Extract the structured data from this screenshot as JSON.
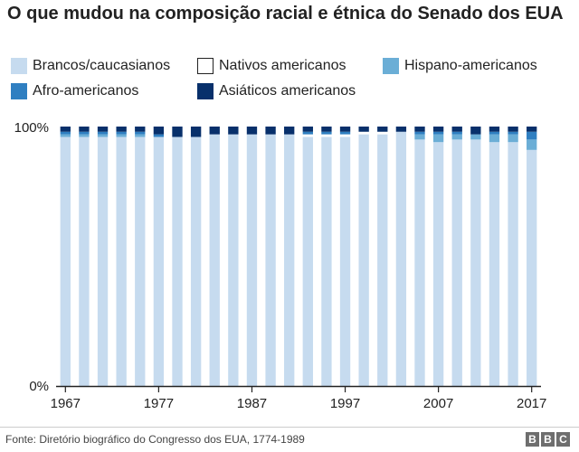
{
  "chart_data": {
    "type": "bar",
    "stacked": true,
    "normalized_percent": true,
    "title": "O que mudou na composição racial e étnica do Senado dos EUA",
    "categories": [
      "1967",
      "1969",
      "1971",
      "1973",
      "1975",
      "1977",
      "1979",
      "1981",
      "1983",
      "1985",
      "1987",
      "1989",
      "1991",
      "1993",
      "1995",
      "1997",
      "1999",
      "2001",
      "2003",
      "2005",
      "2007",
      "2009",
      "2011",
      "2013",
      "2015",
      "2017"
    ],
    "x_tick_labels": [
      "1967",
      "1977",
      "1987",
      "1997",
      "2007",
      "2017"
    ],
    "y_tick_labels": [
      "0%",
      "100%"
    ],
    "ylim": [
      0,
      100
    ],
    "series": [
      {
        "name": "Brancos/caucasianos",
        "color": "#c6dbef",
        "values": [
          96,
          96,
          96,
          96,
          96,
          96,
          96,
          96,
          97,
          97,
          97,
          97,
          97,
          96,
          96,
          96,
          97,
          97,
          98,
          95,
          94,
          95,
          95,
          94,
          94,
          91
        ]
      },
      {
        "name": "Nativos americanos",
        "color": "#ffffff",
        "values": [
          0,
          0,
          0,
          0,
          0,
          0,
          0,
          0,
          0,
          0,
          0,
          0,
          0,
          1,
          1,
          1,
          1,
          1,
          0,
          0,
          0,
          0,
          0,
          0,
          0,
          0
        ]
      },
      {
        "name": "Hispano-americanos",
        "color": "#6baed6",
        "values": [
          1,
          1,
          1,
          1,
          1,
          0,
          0,
          0,
          0,
          0,
          0,
          0,
          0,
          0,
          0,
          0,
          0,
          0,
          0,
          2,
          3,
          2,
          2,
          3,
          3,
          4
        ]
      },
      {
        "name": "Afro-americanos",
        "color": "#2f7fc1",
        "values": [
          1,
          1,
          1,
          1,
          1,
          1,
          0,
          0,
          0,
          0,
          0,
          0,
          0,
          1,
          1,
          1,
          0,
          0,
          0,
          1,
          1,
          1,
          0,
          1,
          1,
          3
        ]
      },
      {
        "name": "Asiáticos americanos",
        "color": "#08306b",
        "values": [
          2,
          2,
          2,
          2,
          2,
          3,
          4,
          4,
          3,
          3,
          3,
          3,
          3,
          2,
          2,
          2,
          2,
          2,
          2,
          2,
          2,
          2,
          3,
          2,
          2,
          2
        ]
      }
    ],
    "grid": false,
    "legend_position": "top"
  },
  "source": "Fonte: Diretório biográfico do Congresso dos EUA, 1774-1989",
  "logo": "BBC"
}
